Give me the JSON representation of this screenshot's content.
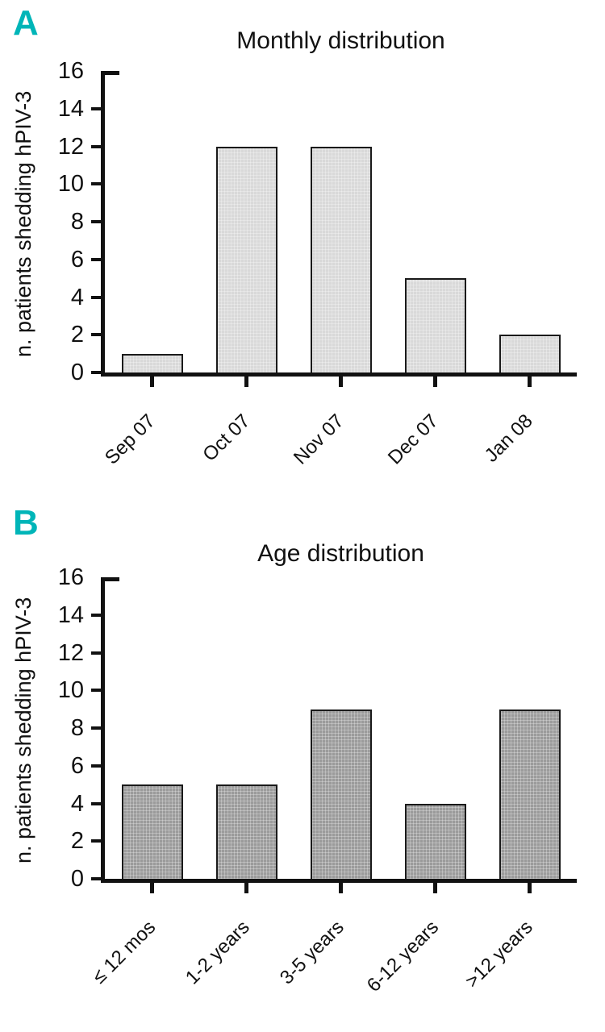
{
  "figure": {
    "background": "#ffffff",
    "accent_teal": "#00b5b8",
    "axis_color": "#111111",
    "text_color": "#111111"
  },
  "chart_data": [
    {
      "type": "bar",
      "panel_label": "A",
      "title": "Monthly distribution",
      "ylabel": "n. patients shedding hPIV-3",
      "xlabel": "",
      "categories": [
        "Sep 07",
        "Oct 07",
        "Nov 07",
        "Dec 07",
        "Jan 08"
      ],
      "values": [
        1,
        12,
        12,
        5,
        2
      ],
      "ylim": [
        0,
        16
      ],
      "ytick_step": 2,
      "bar_fill": "#d9d9d9",
      "bar_border": "#1a1a1a",
      "grid": false,
      "legend": "none"
    },
    {
      "type": "bar",
      "panel_label": "B",
      "title": "Age distribution",
      "ylabel": "n. patients shedding hPIV-3",
      "xlabel": "",
      "categories": [
        "≤ 12 mos",
        "1-2 years",
        "3-5 years",
        "6-12 years",
        ">12 years"
      ],
      "values": [
        5,
        5,
        9,
        4,
        9
      ],
      "ylim": [
        0,
        16
      ],
      "ytick_step": 2,
      "bar_fill": "#9b9b9b",
      "bar_border": "#1a1a1a",
      "grid": false,
      "legend": "none"
    }
  ]
}
